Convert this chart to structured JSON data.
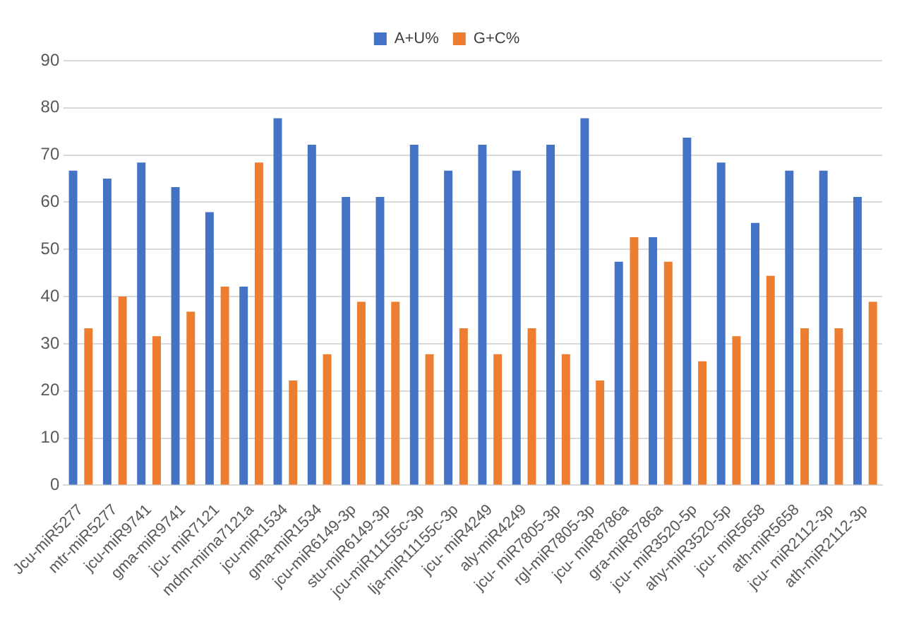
{
  "chart_data": {
    "type": "bar",
    "categories": [
      "Jcu-miR5277",
      "mtr-miR5277",
      "jcu-miR9741",
      "gma-miR9741",
      "jcu- miR7121",
      "mdm-mirna7121a",
      "jcu-miR1534",
      "gma-miR1534",
      "jcu-miR6149-3p",
      "stu-miR6149-3p",
      "jcu-miR11155c-3p",
      "lja-miR11155c-3p",
      "jcu- miR4249",
      "aly-miR4249",
      "jcu- miR7805-3p",
      "rgl-miR7805-3p",
      "jcu- miR8786a",
      "gra-miR8786a",
      "jcu- miR3520-5p",
      "ahy-miR3520-5p",
      "jcu- miR5658",
      "ath-miR5658",
      "jcu- miR2112-3p",
      "ath-miR2112-3p"
    ],
    "series": [
      {
        "name": "A+U%",
        "color": "#4472c4",
        "values": [
          66.7,
          65,
          68.4,
          63.2,
          57.9,
          42.1,
          77.8,
          72.2,
          61.1,
          61.1,
          72.2,
          66.7,
          72.2,
          66.7,
          72.2,
          77.8,
          47.4,
          52.6,
          73.7,
          68.4,
          55.6,
          66.7,
          66.7,
          61.1
        ]
      },
      {
        "name": "G+C%",
        "color": "#ed7d31",
        "values": [
          33.3,
          40,
          31.6,
          36.8,
          42.1,
          68.4,
          22.2,
          27.8,
          38.9,
          38.9,
          27.8,
          33.3,
          27.8,
          33.3,
          27.8,
          22.2,
          52.6,
          47.4,
          26.3,
          31.6,
          44.4,
          33.3,
          33.3,
          38.9
        ]
      }
    ],
    "ylim": [
      0,
      90
    ],
    "yticks": [
      0,
      10,
      20,
      30,
      40,
      50,
      60,
      70,
      80,
      90
    ],
    "grid": "y",
    "legend": "top"
  }
}
